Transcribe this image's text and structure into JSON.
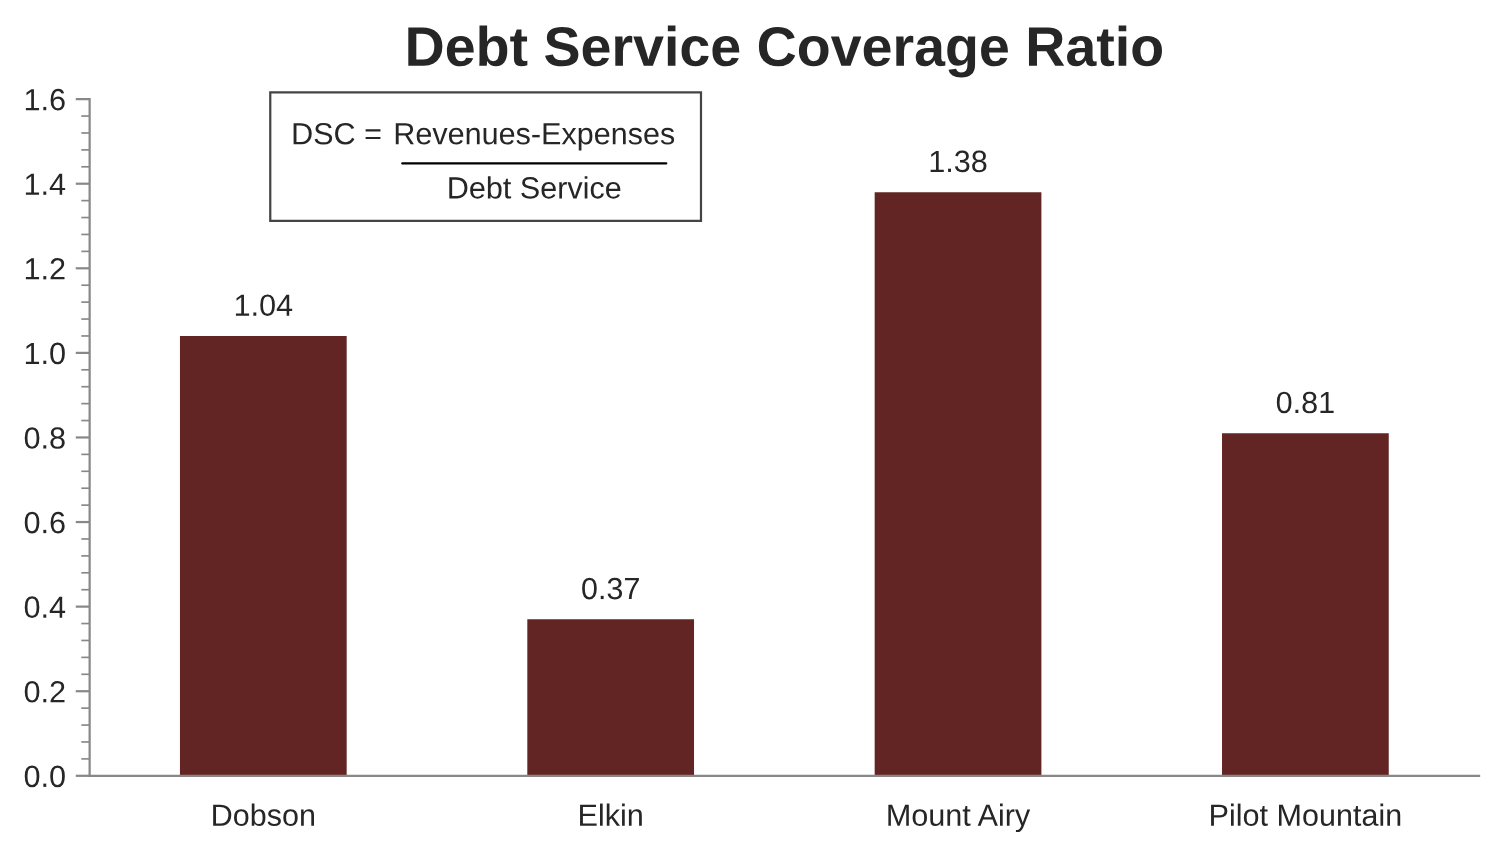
{
  "chart_data": {
    "type": "bar",
    "title": "Debt Service Coverage Ratio",
    "categories": [
      "Dobson",
      "Elkin",
      "Mount Airy",
      "Pilot Mountain"
    ],
    "values": [
      1.04,
      0.37,
      1.38,
      0.81
    ],
    "color": "#632523",
    "ylim": [
      0,
      1.6
    ],
    "yticks": [
      {
        "value": 0,
        "label": "0.0"
      },
      {
        "value": 0.2,
        "label": "0.2"
      },
      {
        "value": 0.4,
        "label": "0.4"
      },
      {
        "value": 0.6,
        "label": "0.6"
      },
      {
        "value": 0.8,
        "label": "0.8"
      },
      {
        "value": 1.0,
        "label": "1.0"
      },
      {
        "value": 1.2,
        "label": "1.2"
      },
      {
        "value": 1.4,
        "label": "1.4"
      },
      {
        "value": 1.6,
        "label": "1.6"
      }
    ],
    "data_labels": true,
    "grid": false,
    "legend": false,
    "annotations": [
      "DSC =",
      "Revenues-Expenses",
      "Debt Service"
    ]
  }
}
